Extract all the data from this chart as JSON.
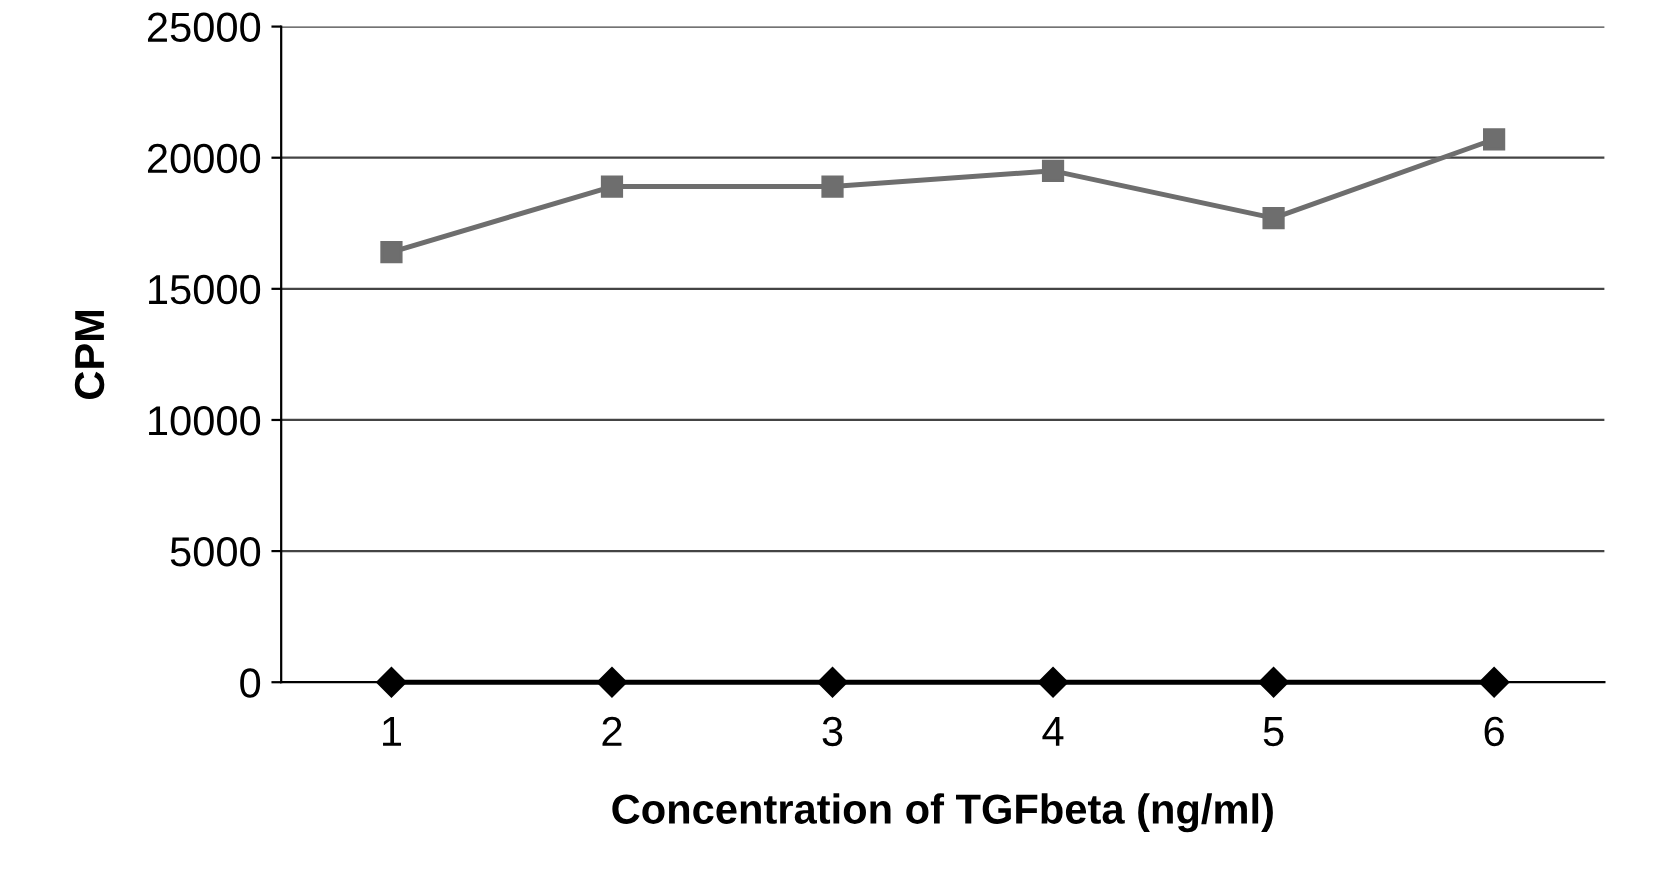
{
  "chart_data": {
    "type": "line",
    "xlabel": "Concentration of TGFbeta (ng/ml)",
    "ylabel": "CPM",
    "categories": [
      "1",
      "2",
      "3",
      "4",
      "5",
      "6"
    ],
    "series": [
      {
        "color": "#6e6e6e",
        "marker": "square",
        "values": [
          16400,
          18900,
          18900,
          19500,
          17700,
          20700
        ]
      },
      {
        "color": "#000000",
        "marker": "diamond",
        "values": [
          0,
          0,
          0,
          0,
          0,
          0
        ]
      }
    ],
    "ylim": [
      0,
      25000
    ],
    "yticks": [
      0,
      5000,
      10000,
      15000,
      20000,
      25000
    ],
    "grid": "y",
    "legend": false
  }
}
